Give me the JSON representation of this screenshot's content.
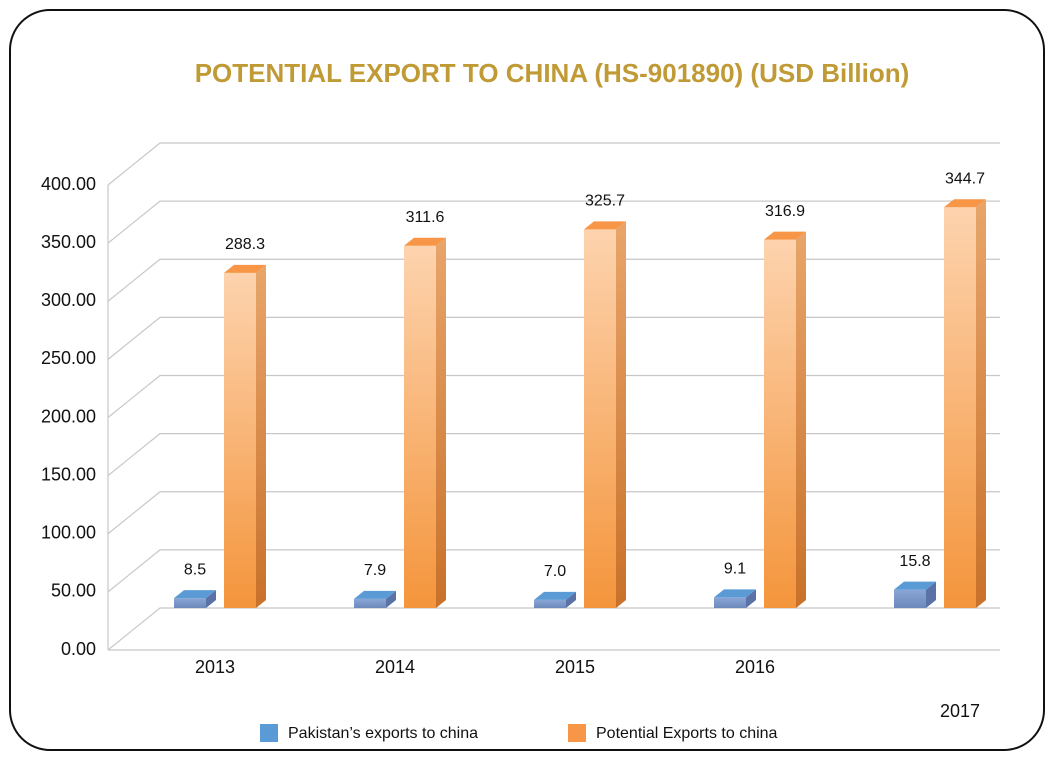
{
  "chart_data": {
    "type": "bar3d",
    "title": "POTENTIAL EXPORT  TO CHINA (HS-901890) (USD Billion)",
    "categories": [
      "2013",
      "2014",
      "2015",
      "2016",
      "2017"
    ],
    "series": [
      {
        "name": "Pakistan’s exports to china",
        "color": "#5b9bd5",
        "values": [
          8.5,
          7.9,
          7.0,
          9.1,
          15.8
        ],
        "value_labels": [
          "8.5",
          "7.9",
          "7.0",
          "9.1",
          "15.8"
        ]
      },
      {
        "name": "Potential Exports to china",
        "color": "#f79646",
        "values": [
          288.3,
          311.6,
          325.7,
          316.9,
          344.7
        ]
      }
    ],
    "ylim": [
      0,
      400
    ],
    "yticks": [
      {
        "value": 0,
        "label": "0.00"
      },
      {
        "value": 50,
        "label": "50.00"
      },
      {
        "value": 100,
        "label": "100.00"
      },
      {
        "value": 150,
        "label": "150.00"
      },
      {
        "value": 200,
        "label": "200.00"
      },
      {
        "value": 250,
        "label": "250.00"
      },
      {
        "value": 300,
        "label": "300.00"
      },
      {
        "value": 350,
        "label": "350.00"
      },
      {
        "value": 400,
        "label": "400.00"
      }
    ],
    "grid": true,
    "legend": "bottom"
  }
}
